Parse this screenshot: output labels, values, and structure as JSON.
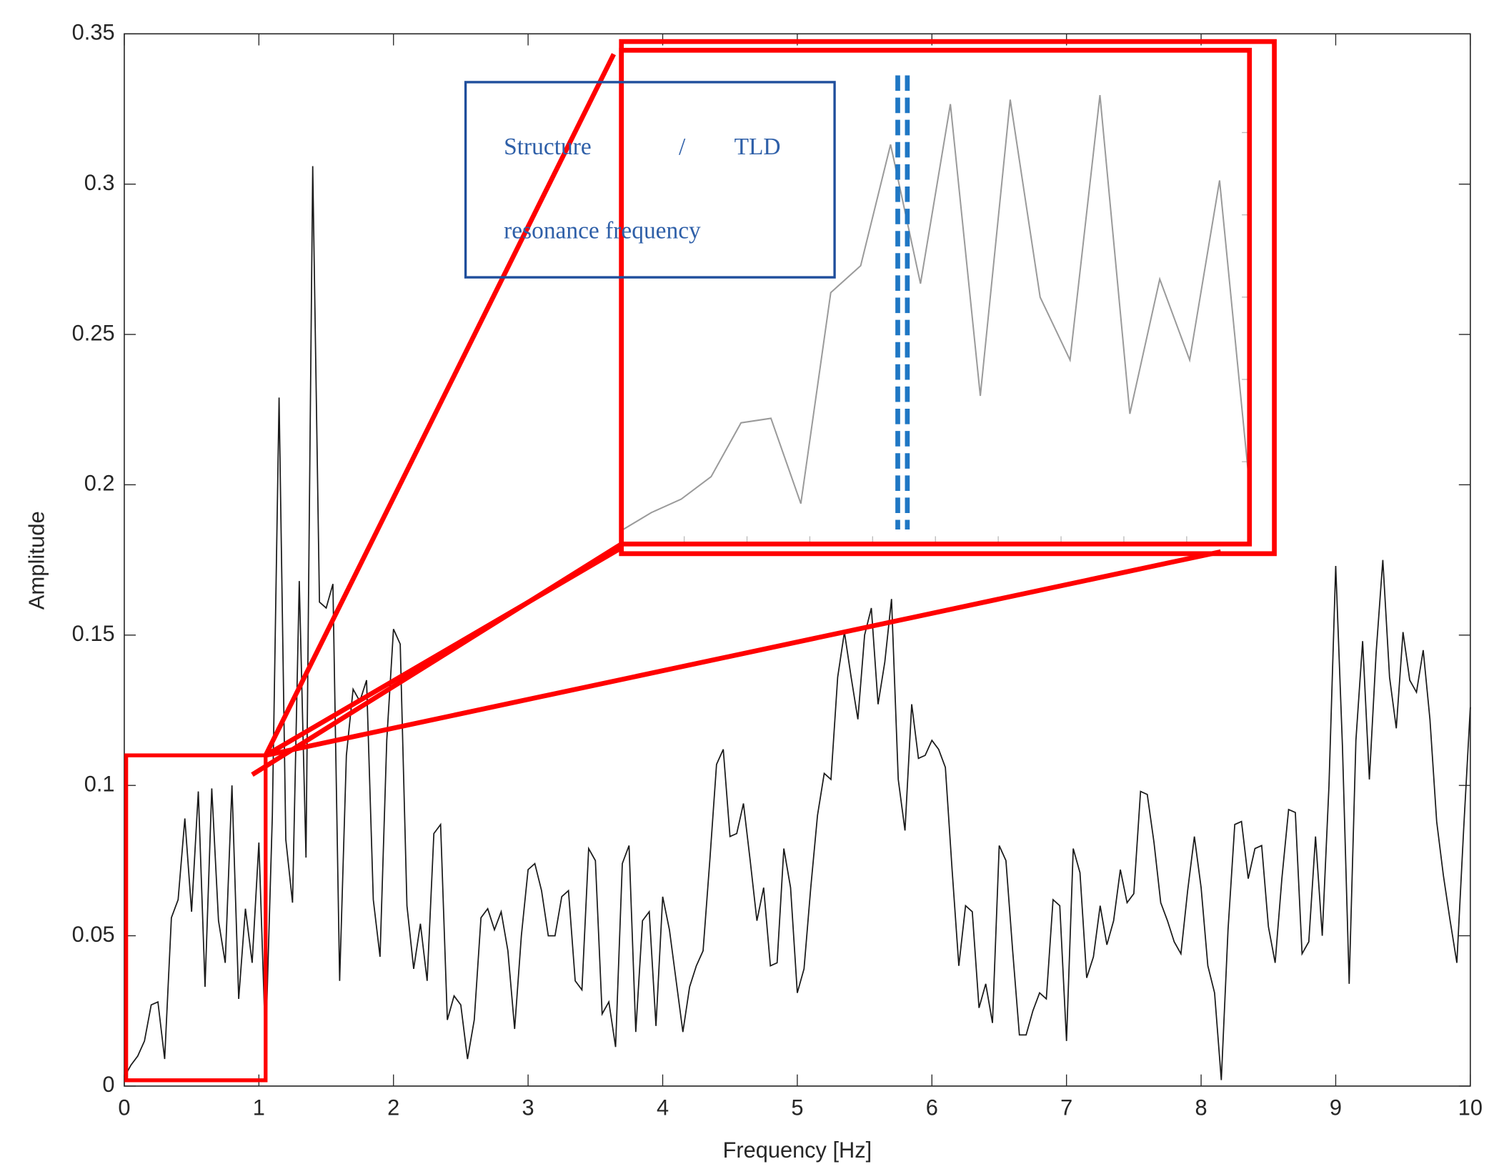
{
  "chart_data": {
    "type": "line",
    "xlabel": "Frequency [Hz]",
    "ylabel": "Amplitude",
    "x": [
      0,
      0.05,
      0.1,
      0.15,
      0.2,
      0.25,
      0.3,
      0.35,
      0.4,
      0.45,
      0.5,
      0.55,
      0.6,
      0.65,
      0.7,
      0.75,
      0.8,
      0.85,
      0.9,
      0.95,
      1,
      1.05,
      1.1,
      1.15,
      1.2,
      1.25,
      1.3,
      1.35,
      1.4,
      1.45,
      1.5,
      1.55,
      1.6,
      1.65,
      1.7,
      1.75,
      1.8,
      1.85,
      1.9,
      1.95,
      2,
      2.05,
      2.1,
      2.15,
      2.2,
      2.25,
      2.3,
      2.35,
      2.4,
      2.45,
      2.5,
      2.55,
      2.6,
      2.65,
      2.7,
      2.75,
      2.8,
      2.85,
      2.9,
      2.95,
      3,
      3.05,
      3.1,
      3.15,
      3.2,
      3.25,
      3.3,
      3.35,
      3.4,
      3.45,
      3.5,
      3.55,
      3.6,
      3.65,
      3.7,
      3.75,
      3.8,
      3.85,
      3.9,
      3.95,
      4,
      4.05,
      4.1,
      4.15,
      4.2,
      4.25,
      4.3,
      4.35,
      4.4,
      4.45,
      4.5,
      4.55,
      4.6,
      4.65,
      4.7,
      4.75,
      4.8,
      4.85,
      4.9,
      4.95,
      5,
      5.05,
      5.1,
      5.15,
      5.2,
      5.25,
      5.3,
      5.35,
      5.4,
      5.45,
      5.5,
      5.55,
      5.6,
      5.65,
      5.7,
      5.75,
      5.8,
      5.85,
      5.9,
      5.95,
      6,
      6.05,
      6.1,
      6.15,
      6.2,
      6.25,
      6.3,
      6.35,
      6.4,
      6.45,
      6.5,
      6.55,
      6.6,
      6.65,
      6.7,
      6.75,
      6.8,
      6.85,
      6.9,
      6.95,
      7,
      7.05,
      7.1,
      7.15,
      7.2,
      7.25,
      7.3,
      7.35,
      7.4,
      7.45,
      7.5,
      7.55,
      7.6,
      7.65,
      7.7,
      7.75,
      7.8,
      7.85,
      7.9,
      7.95,
      8,
      8.05,
      8.1,
      8.15,
      8.2,
      8.25,
      8.3,
      8.35,
      8.4,
      8.45,
      8.5,
      8.55,
      8.6,
      8.65,
      8.7,
      8.75,
      8.8,
      8.85,
      8.9,
      8.95,
      9,
      9.05,
      9.1,
      9.15,
      9.2,
      9.25,
      9.3,
      9.35,
      9.4,
      9.45,
      9.5,
      9.55,
      9.6,
      9.65,
      9.7,
      9.75,
      9.8,
      9.85,
      9.9,
      9.95,
      10
    ],
    "values": [
      0.003,
      0.007,
      0.01,
      0.015,
      0.027,
      0.028,
      0.009,
      0.056,
      0.062,
      0.089,
      0.058,
      0.098,
      0.033,
      0.099,
      0.055,
      0.041,
      0.1,
      0.029,
      0.059,
      0.041,
      0.081,
      0.013,
      0.09,
      0.229,
      0.082,
      0.061,
      0.168,
      0.076,
      0.306,
      0.161,
      0.159,
      0.167,
      0.035,
      0.11,
      0.132,
      0.128,
      0.135,
      0.062,
      0.043,
      0.115,
      0.152,
      0.147,
      0.06,
      0.039,
      0.054,
      0.035,
      0.084,
      0.087,
      0.022,
      0.03,
      0.027,
      0.009,
      0.022,
      0.056,
      0.059,
      0.052,
      0.058,
      0.045,
      0.019,
      0.05,
      0.072,
      0.074,
      0.065,
      0.05,
      0.05,
      0.063,
      0.065,
      0.035,
      0.032,
      0.079,
      0.075,
      0.024,
      0.028,
      0.013,
      0.074,
      0.08,
      0.018,
      0.055,
      0.058,
      0.02,
      0.063,
      0.052,
      0.035,
      0.018,
      0.033,
      0.04,
      0.045,
      0.075,
      0.107,
      0.112,
      0.083,
      0.084,
      0.094,
      0.075,
      0.055,
      0.066,
      0.04,
      0.041,
      0.079,
      0.066,
      0.031,
      0.039,
      0.066,
      0.09,
      0.104,
      0.102,
      0.136,
      0.151,
      0.136,
      0.122,
      0.15,
      0.159,
      0.127,
      0.141,
      0.162,
      0.102,
      0.085,
      0.127,
      0.109,
      0.11,
      0.115,
      0.112,
      0.106,
      0.072,
      0.04,
      0.06,
      0.058,
      0.026,
      0.034,
      0.021,
      0.08,
      0.075,
      0.045,
      0.017,
      0.017,
      0.025,
      0.031,
      0.029,
      0.062,
      0.06,
      0.015,
      0.079,
      0.071,
      0.036,
      0.043,
      0.06,
      0.047,
      0.055,
      0.072,
      0.061,
      0.064,
      0.098,
      0.097,
      0.081,
      0.061,
      0.055,
      0.048,
      0.044,
      0.065,
      0.083,
      0.066,
      0.04,
      0.031,
      0.002,
      0.052,
      0.087,
      0.088,
      0.069,
      0.079,
      0.08,
      0.053,
      0.041,
      0.069,
      0.092,
      0.091,
      0.044,
      0.048,
      0.083,
      0.05,
      0.1,
      0.173,
      0.113,
      0.034,
      0.115,
      0.148,
      0.102,
      0.144,
      0.175,
      0.136,
      0.119,
      0.151,
      0.135,
      0.131,
      0.145,
      0.122,
      0.088,
      0.07,
      0.055,
      0.041,
      0.085,
      0.126
    ],
    "color": "#1a1a1a",
    "xlim": [
      0,
      10
    ],
    "xticks": [
      0,
      1,
      2,
      3,
      4,
      5,
      6,
      7,
      8,
      9,
      10
    ],
    "ylim": [
      0,
      0.35
    ],
    "yticks": [
      0,
      0.05,
      0.1,
      0.15,
      0.2,
      0.25,
      0.3,
      0.35
    ],
    "zoom_box": {
      "xlim": [
        0,
        1.05
      ],
      "ylim": [
        0,
        0.11
      ],
      "color": "#ff0000",
      "line_color": "#9a9a9a",
      "resonance_line_x": 0.47,
      "resonance_line_color": "#1f77c4"
    },
    "annotation": {
      "words": [
        "Structure",
        "/",
        "TLD"
      ],
      "line2": "resonance frequency",
      "color": "#1f4e9c"
    }
  }
}
